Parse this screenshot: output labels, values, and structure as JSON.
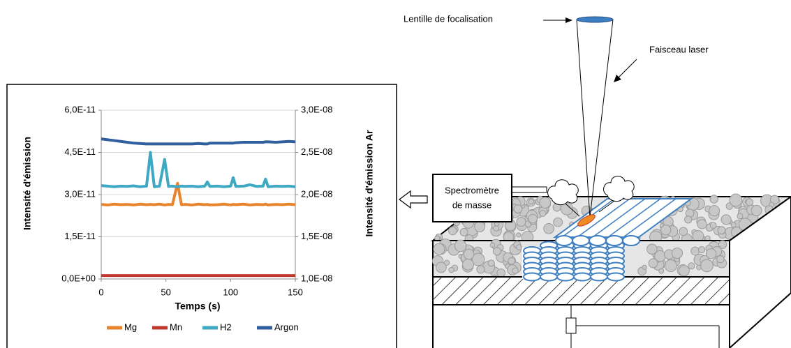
{
  "chart_data": {
    "type": "line",
    "x_label": "Temps (s)",
    "y_label": "Intensité d'émission",
    "y2_label": "Intensité d'émission Ar",
    "x": [
      0,
      5,
      10,
      15,
      20,
      25,
      30,
      35,
      38,
      41,
      45,
      49,
      52,
      55,
      59,
      62,
      65,
      70,
      75,
      80,
      82,
      84,
      90,
      95,
      100,
      102,
      104,
      110,
      115,
      120,
      125,
      127,
      129,
      135,
      140,
      145,
      150
    ],
    "series": [
      {
        "name": "Mg",
        "color": "#e8842c",
        "values": [
          2.65e-11,
          2.63e-11,
          2.66e-11,
          2.64e-11,
          2.65e-11,
          2.63e-11,
          2.66e-11,
          2.64e-11,
          2.65e-11,
          2.64e-11,
          2.66e-11,
          2.63e-11,
          2.65e-11,
          2.64e-11,
          3.4e-11,
          2.64e-11,
          2.65e-11,
          2.63e-11,
          2.66e-11,
          2.64e-11,
          2.65e-11,
          2.63e-11,
          2.64e-11,
          2.66e-11,
          2.63e-11,
          2.65e-11,
          2.64e-11,
          2.66e-11,
          2.63e-11,
          2.65e-11,
          2.64e-11,
          2.66e-11,
          2.63e-11,
          2.65e-11,
          2.64e-11,
          2.66e-11,
          2.64e-11
        ]
      },
      {
        "name": "Mn",
        "color": "#c0392b",
        "values": [
          1.2e-12,
          1.2e-12,
          1.2e-12,
          1.2e-12,
          1.2e-12,
          1.2e-12,
          1.2e-12,
          1.2e-12,
          1.2e-12,
          1.2e-12,
          1.2e-12,
          1.2e-12,
          1.2e-12,
          1.2e-12,
          1.2e-12,
          1.2e-12,
          1.2e-12,
          1.2e-12,
          1.2e-12,
          1.2e-12,
          1.2e-12,
          1.2e-12,
          1.2e-12,
          1.2e-12,
          1.2e-12,
          1.2e-12,
          1.2e-12,
          1.2e-12,
          1.2e-12,
          1.2e-12,
          1.2e-12,
          1.2e-12,
          1.2e-12,
          1.2e-12,
          1.2e-12,
          1.2e-12,
          1.2e-12
        ]
      },
      {
        "name": "H2",
        "color": "#3fa9c4",
        "values": [
          3.32e-11,
          3.3e-11,
          3.28e-11,
          3.3e-11,
          3.29e-11,
          3.31e-11,
          3.28e-11,
          3.3e-11,
          4.5e-11,
          3.28e-11,
          3.3e-11,
          4.25e-11,
          3.29e-11,
          3.3e-11,
          3.28e-11,
          3.3e-11,
          3.29e-11,
          3.3e-11,
          3.28e-11,
          3.3e-11,
          3.45e-11,
          3.29e-11,
          3.3e-11,
          3.28e-11,
          3.3e-11,
          3.6e-11,
          3.29e-11,
          3.3e-11,
          3.35e-11,
          3.29e-11,
          3.3e-11,
          3.55e-11,
          3.28e-11,
          3.3e-11,
          3.29e-11,
          3.3e-11,
          3.28e-11
        ]
      },
      {
        "name": "Argon",
        "color": "#2f5f9e",
        "axis": "y2",
        "values": [
          2.66e-08,
          2.65e-08,
          2.64e-08,
          2.63e-08,
          2.62e-08,
          2.61e-08,
          2.605e-08,
          2.6e-08,
          2.6e-08,
          2.6e-08,
          2.6e-08,
          2.6e-08,
          2.6e-08,
          2.6e-08,
          2.6e-08,
          2.6e-08,
          2.6e-08,
          2.6e-08,
          2.605e-08,
          2.6e-08,
          2.6e-08,
          2.61e-08,
          2.61e-08,
          2.61e-08,
          2.61e-08,
          2.61e-08,
          2.615e-08,
          2.62e-08,
          2.62e-08,
          2.62e-08,
          2.62e-08,
          2.625e-08,
          2.625e-08,
          2.62e-08,
          2.625e-08,
          2.63e-08,
          2.625e-08
        ]
      }
    ],
    "xlim": [
      0,
      150
    ],
    "xticks": [
      0,
      50,
      100,
      150
    ],
    "ylim": [
      0,
      6e-11
    ],
    "yticks": [
      {
        "value": 0,
        "label": "0,0E+00"
      },
      {
        "value": 1.5e-11,
        "label": "1,5E-11"
      },
      {
        "value": 3e-11,
        "label": "3,0E-11"
      },
      {
        "value": 4.5e-11,
        "label": "4,5E-11"
      },
      {
        "value": 6e-11,
        "label": "6,0E-11"
      }
    ],
    "y2lim": [
      1e-08,
      3e-08
    ],
    "y2ticks": [
      {
        "value": 1e-08,
        "label": "1,0E-08"
      },
      {
        "value": 1.5e-08,
        "label": "1,5E-08"
      },
      {
        "value": 2e-08,
        "label": "2,0E-08"
      },
      {
        "value": 2.5e-08,
        "label": "2,5E-08"
      },
      {
        "value": 3e-08,
        "label": "3,0E-08"
      }
    ],
    "legend": "bottom"
  },
  "diagram": {
    "lens_label": "Lentille de focalisation",
    "beam_label": "Faisceau laser",
    "spectrometer_label": [
      "Spectromètre",
      "de masse"
    ]
  }
}
